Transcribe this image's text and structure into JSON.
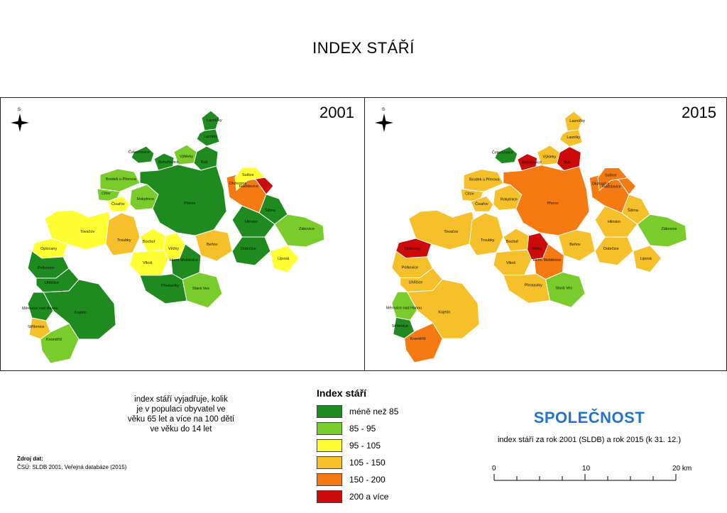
{
  "title": "INDEX STÁŘÍ",
  "maps": [
    {
      "year": "2001",
      "regions": [
        {
          "name": "Lazníčky",
          "cls": "a"
        },
        {
          "name": "Lazníky",
          "cls": "a"
        },
        {
          "name": "Čelechovice",
          "cls": "a"
        },
        {
          "name": "Bohuňovice",
          "cls": "a"
        },
        {
          "name": "Výkleky",
          "cls": "b"
        },
        {
          "name": "Buk",
          "cls": "a"
        },
        {
          "name": "Brodek u Přerova",
          "cls": "b"
        },
        {
          "name": "Citov",
          "cls": "b"
        },
        {
          "name": "Čisařov",
          "cls": "c"
        },
        {
          "name": "Rokytnice",
          "cls": "b"
        },
        {
          "name": "Přerov",
          "cls": "a"
        },
        {
          "name": "Dluhonice",
          "cls": "e"
        },
        {
          "name": "Tovačov",
          "cls": "c"
        },
        {
          "name": "Troubky",
          "cls": "d"
        },
        {
          "name": "Oplocany",
          "cls": "c"
        },
        {
          "name": "Bochoř",
          "cls": "c"
        },
        {
          "name": "Věžky",
          "cls": "c"
        },
        {
          "name": "Vlkoš",
          "cls": "c"
        },
        {
          "name": "Polkovice",
          "cls": "a"
        },
        {
          "name": "Uhřičice",
          "cls": "a"
        },
        {
          "name": "Kojetín",
          "cls": "a"
        },
        {
          "name": "Měrovice nad Hanou",
          "cls": "a"
        },
        {
          "name": "Stříbrnice",
          "cls": "d"
        },
        {
          "name": "Kroměříž",
          "cls": "b"
        },
        {
          "name": "Beňov",
          "cls": "d"
        },
        {
          "name": "Horní Moštěnice",
          "cls": "a"
        },
        {
          "name": "Stará Ves",
          "cls": "b"
        },
        {
          "name": "Přestavlky",
          "cls": "a"
        },
        {
          "name": "Šišma",
          "cls": "a"
        },
        {
          "name": "Radslavice",
          "cls": "f"
        },
        {
          "name": "Sušice",
          "cls": "c"
        },
        {
          "name": "Hlinsko",
          "cls": "a"
        },
        {
          "name": "Dobrčice",
          "cls": "a"
        },
        {
          "name": "Lipová",
          "cls": "c"
        },
        {
          "name": "Zákovice",
          "cls": "b"
        }
      ]
    },
    {
      "year": "2015",
      "regions": [
        {
          "name": "Lazníčky",
          "cls": "d"
        },
        {
          "name": "Lazníky",
          "cls": "d"
        },
        {
          "name": "Čelechovice",
          "cls": "a"
        },
        {
          "name": "Bohuňovice",
          "cls": "f"
        },
        {
          "name": "Výkleky",
          "cls": "d"
        },
        {
          "name": "Buk",
          "cls": "f"
        },
        {
          "name": "Brodek u Přerova",
          "cls": "d"
        },
        {
          "name": "Citov",
          "cls": "d"
        },
        {
          "name": "Čisařov",
          "cls": "d"
        },
        {
          "name": "Rokytnice",
          "cls": "d"
        },
        {
          "name": "Přerov",
          "cls": "e"
        },
        {
          "name": "Dluhonice",
          "cls": "e"
        },
        {
          "name": "Tovačov",
          "cls": "d"
        },
        {
          "name": "Troubky",
          "cls": "d"
        },
        {
          "name": "Oplocany",
          "cls": "f"
        },
        {
          "name": "Bochoř",
          "cls": "d"
        },
        {
          "name": "Věžky",
          "cls": "f"
        },
        {
          "name": "Vlkoš",
          "cls": "d"
        },
        {
          "name": "Polkovice",
          "cls": "d"
        },
        {
          "name": "Uhřičice",
          "cls": "d"
        },
        {
          "name": "Kojetín",
          "cls": "d"
        },
        {
          "name": "Měrovice nad Hanou",
          "cls": "b"
        },
        {
          "name": "Stříbrnice",
          "cls": "a"
        },
        {
          "name": "Kroměříž",
          "cls": "e"
        },
        {
          "name": "Beňov",
          "cls": "d"
        },
        {
          "name": "Horní Moštěnice",
          "cls": "e"
        },
        {
          "name": "Stará Ves",
          "cls": "b"
        },
        {
          "name": "Přestavlky",
          "cls": "d"
        },
        {
          "name": "Šišma",
          "cls": "d"
        },
        {
          "name": "Radslavice",
          "cls": "e"
        },
        {
          "name": "Sušice",
          "cls": "e"
        },
        {
          "name": "Hlinsko",
          "cls": "d"
        },
        {
          "name": "Dobrčice",
          "cls": "d"
        },
        {
          "name": "Lipová",
          "cls": "d"
        },
        {
          "name": "Zákovice",
          "cls": "b"
        }
      ]
    }
  ],
  "explanation": [
    "index stáří  vyjadřuje, kolik",
    "je v populaci obyvatel ve",
    "věku 65 let a více na 100 dětí",
    "ve věku do 14 let"
  ],
  "source": {
    "title": "Zdroj dat:",
    "text": "ČSÚ: SLDB 2001, Veřejná databáze (2015)"
  },
  "legend": {
    "title": "Index stáří",
    "items": [
      {
        "key": "a",
        "label": "méně než 85",
        "color": "#1f8a1f"
      },
      {
        "key": "b",
        "label": "85 - 95",
        "color": "#7acc2c"
      },
      {
        "key": "c",
        "label": "95 - 105",
        "color": "#ffff33"
      },
      {
        "key": "d",
        "label": "105 - 150",
        "color": "#f5c02a"
      },
      {
        "key": "e",
        "label": "150 - 200",
        "color": "#f57a12"
      },
      {
        "key": "f",
        "label": "200 a více",
        "color": "#cc0a0a"
      }
    ]
  },
  "theme": "SPOLEČNOST",
  "subtitle": "index stáří za rok 2001 (SLDB) a rok 2015 (k 31. 12.)",
  "scale": {
    "labels": [
      "0",
      "10",
      "20 km"
    ]
  },
  "north_letter": "S"
}
